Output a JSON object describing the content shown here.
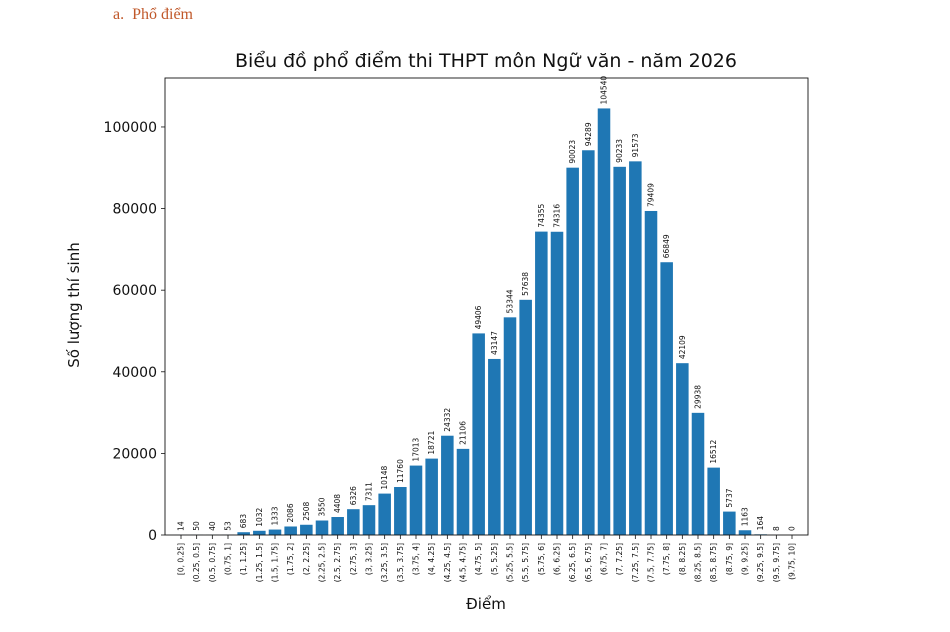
{
  "section_heading": {
    "marker": "a.",
    "text": "Phổ điểm"
  },
  "chart_data": {
    "type": "bar",
    "title": "Biểu đồ phổ điểm thi THPT môn Ngữ văn - năm 2026",
    "xlabel": "Điểm",
    "ylabel": "Số lượng thí sinh",
    "ylim": [
      0,
      112000
    ],
    "yticks": [
      0,
      20000,
      40000,
      60000,
      80000,
      100000
    ],
    "grid": false,
    "bar_color": "#1f77b4",
    "categories": [
      "[0, 0.25]",
      "(0.25, 0.5]",
      "(0.5, 0.75]",
      "(0.75, 1]",
      "(1, 1.25]",
      "(1.25, 1.5]",
      "(1.5, 1.75]",
      "(1.75, 2]",
      "(2, 2.25]",
      "(2.25, 2.5]",
      "(2.5, 2.75]",
      "(2.75, 3]",
      "(3, 3.25]",
      "(3.25, 3.5]",
      "(3.5, 3.75]",
      "(3.75, 4]",
      "(4, 4.25]",
      "(4.25, 4.5]",
      "(4.5, 4.75]",
      "(4.75, 5]",
      "(5, 5.25]",
      "(5.25, 5.5]",
      "(5.5, 5.75]",
      "(5.75, 6]",
      "(6, 6.25]",
      "(6.25, 6.5]",
      "(6.5, 6.75]",
      "(6.75, 7]",
      "(7, 7.25]",
      "(7.25, 7.5]",
      "(7.5, 7.75]",
      "(7.75, 8]",
      "(8, 8.25]",
      "(8.25, 8.5]",
      "(8.5, 8.75]",
      "(8.75, 9]",
      "(9, 9.25]",
      "(9.25, 9.5]",
      "(9.5, 9.75]",
      "(9.75, 10]"
    ],
    "values": [
      14,
      50,
      40,
      53,
      683,
      1032,
      1333,
      2086,
      2508,
      3550,
      4408,
      6326,
      7311,
      10148,
      11760,
      17013,
      18721,
      24332,
      21106,
      49406,
      43147,
      53344,
      57638,
      74355,
      74316,
      90023,
      94289,
      104540,
      90233,
      91573,
      79409,
      66849,
      42109,
      29938,
      16512,
      5737,
      1163,
      164,
      8,
      0
    ]
  }
}
